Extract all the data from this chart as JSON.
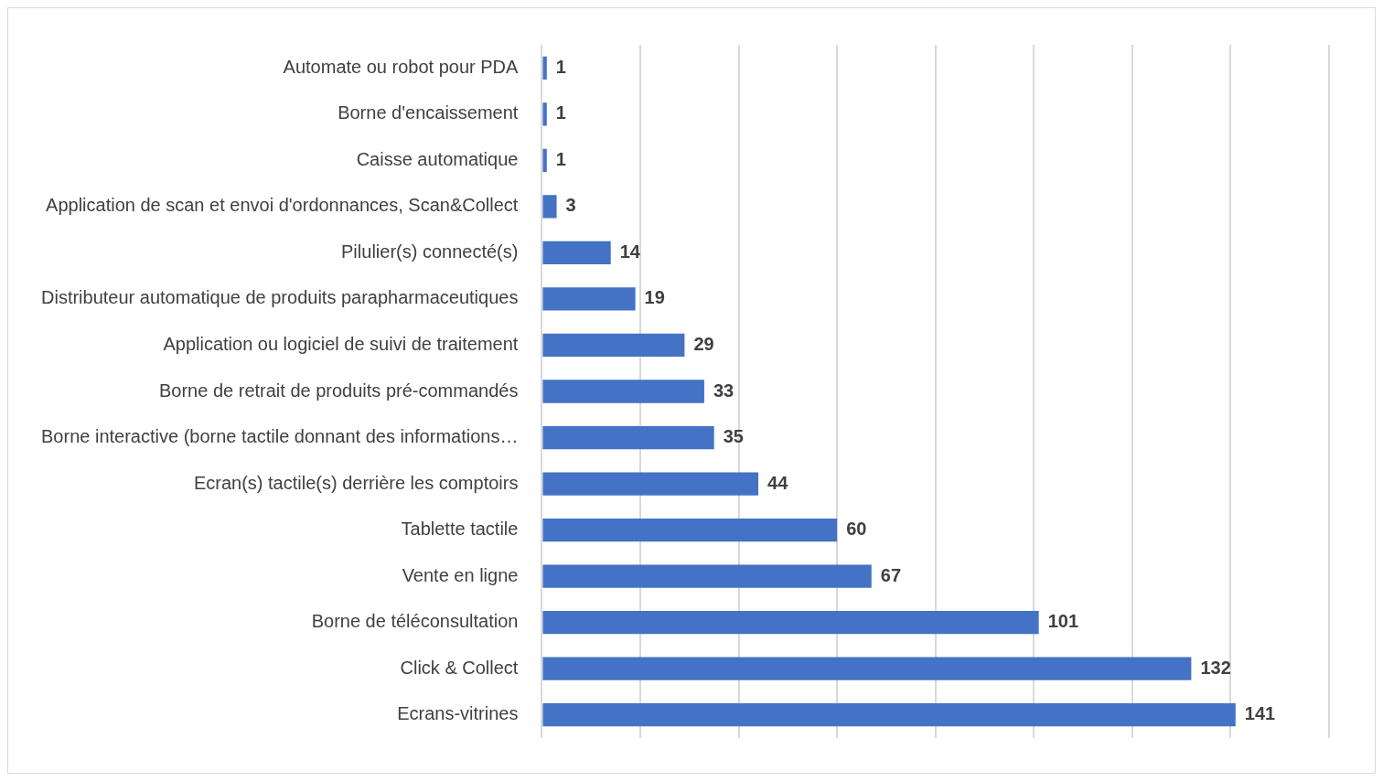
{
  "chart_data": {
    "type": "bar",
    "orientation": "horizontal",
    "categories": [
      "Automate ou robot pour PDA",
      "Borne d'encaissement",
      "Caisse automatique",
      "Application de scan et envoi d'ordonnances, Scan&Collect",
      "Pilulier(s) connecté(s)",
      "Distributeur automatique de produits parapharmaceutiques",
      "Application ou logiciel de suivi de traitement",
      "Borne de retrait de produits pré-commandés",
      "Borne interactive (borne tactile donnant des informations…",
      "Ecran(s) tactile(s) derrière les comptoirs",
      "Tablette tactile",
      "Vente en ligne",
      "Borne de téléconsultation",
      "Click & Collect",
      "Ecrans-vitrines"
    ],
    "values": [
      1,
      1,
      1,
      3,
      14,
      19,
      29,
      33,
      35,
      44,
      60,
      67,
      101,
      132,
      141
    ],
    "color": "#4472c4",
    "xlim": [
      0,
      160
    ],
    "xticks": [
      {
        "value": 0,
        "label": null
      },
      {
        "value": 20,
        "label": null
      },
      {
        "value": 40,
        "label": null
      },
      {
        "value": 60,
        "label": null
      },
      {
        "value": 80,
        "label": null
      },
      {
        "value": 100,
        "label": null
      },
      {
        "value": 120,
        "label": null
      },
      {
        "value": 140,
        "label": null
      },
      {
        "value": 160,
        "label": null
      }
    ],
    "tick_labels": "y",
    "grid": "x",
    "data_labels": true,
    "legend": false
  }
}
